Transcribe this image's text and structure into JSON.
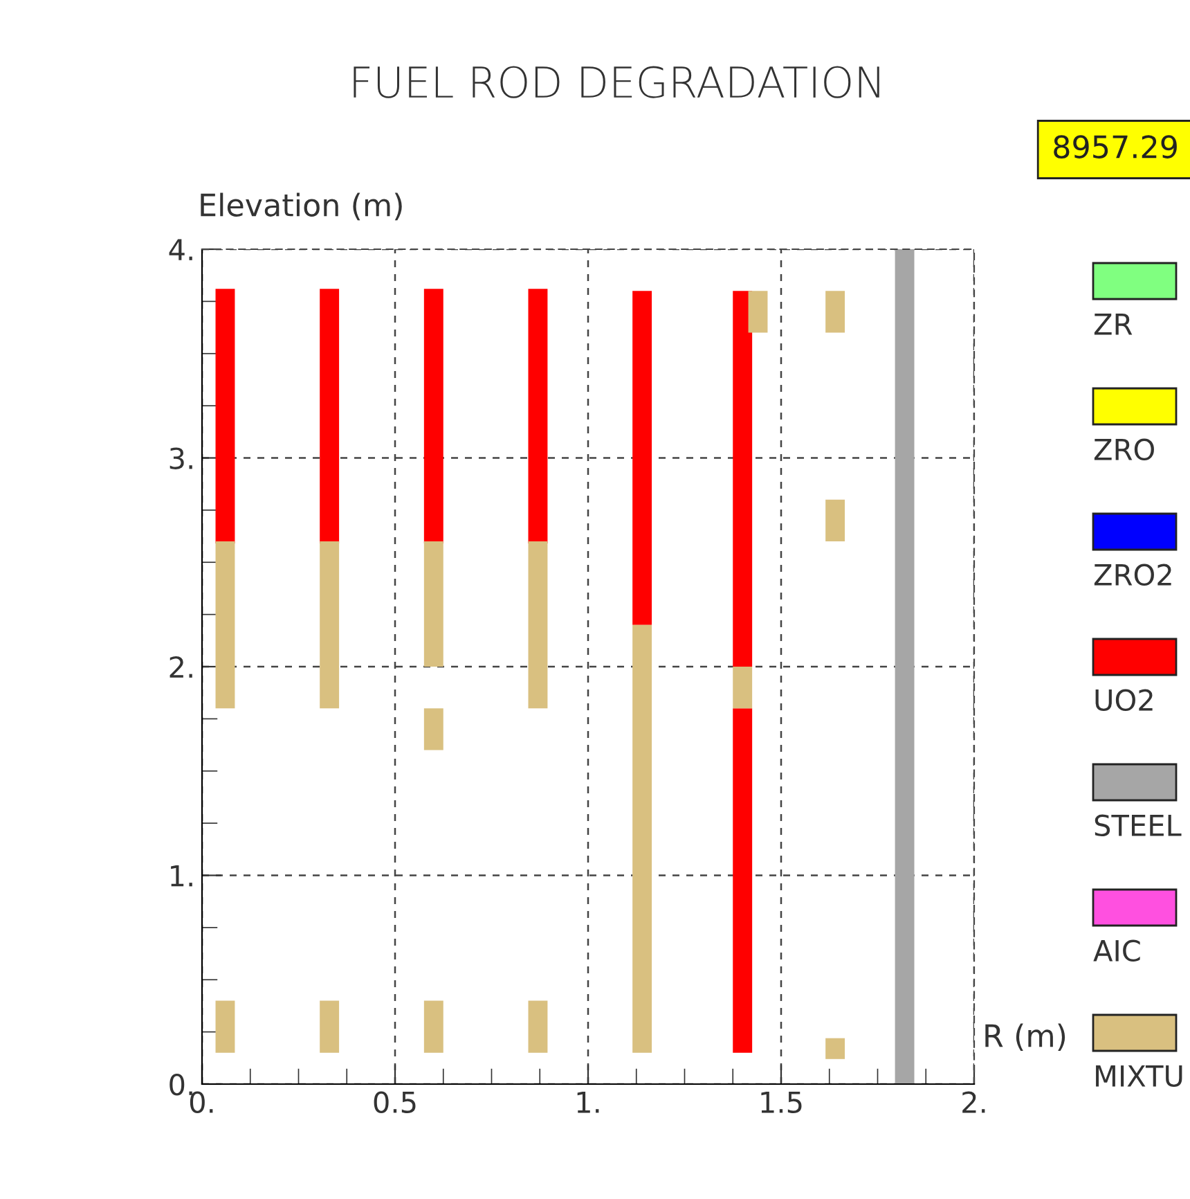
{
  "chart_data": {
    "type": "bar",
    "title": "FUEL ROD DEGRADATION",
    "xlabel": "R (m)",
    "ylabel": "Elevation (m)",
    "annotations": [
      "8957.29"
    ],
    "xlim": [
      0,
      2
    ],
    "xticks": [
      {
        "value": 0,
        "label": "0."
      },
      0.5,
      {
        "value": 1,
        "label": "1."
      },
      1.5,
      {
        "value": 2,
        "label": "2."
      }
    ],
    "ylim": [
      0,
      4
    ],
    "yticks": [
      {
        "value": 0,
        "label": "0."
      },
      {
        "value": 1,
        "label": "1."
      },
      {
        "value": 2,
        "label": "2."
      },
      {
        "value": 3,
        "label": "3."
      },
      {
        "value": 4,
        "label": "4."
      }
    ],
    "grid": true,
    "legend": "right",
    "series": [
      {
        "name": "ZR",
        "color": "#80ff80"
      },
      {
        "name": "ZRO",
        "color": "#ffff00"
      },
      {
        "name": "ZRO2",
        "color": "#0000ff"
      },
      {
        "name": "UO2",
        "color": "#ff0000",
        "x": [
          0.06,
          0.33,
          0.6,
          0.87,
          1.14,
          1.4
        ],
        "values": [
          1.22,
          1.22,
          1.22,
          1.22,
          1.6,
          1.8
        ],
        "base": [
          2.59,
          2.59,
          2.59,
          2.59,
          2.2,
          2.0
        ]
      },
      {
        "color": "#ff0000",
        "x": [
          1.4
        ],
        "values": [
          1.65
        ],
        "base": [
          0.15
        ]
      },
      {
        "name": "STEEL",
        "color": "#a6a6a6",
        "x": [
          1.82
        ],
        "values": [
          4.0
        ],
        "base": [
          0
        ]
      },
      {
        "name": "AIC",
        "color": "#ff50e0"
      },
      {
        "name": "MIXTU",
        "color": "#d9c080",
        "x": [
          0.06,
          0.33,
          0.6,
          0.87,
          1.14,
          1.4,
          1.44,
          1.64
        ],
        "values": [
          0.8,
          0.8,
          0.6,
          0.8,
          2.05,
          0.2,
          0.2,
          0.2
        ],
        "base": [
          1.8,
          1.8,
          2.0,
          1.8,
          0.15,
          1.8,
          3.6,
          3.6
        ]
      },
      {
        "color": "#d9c080",
        "x": [
          0.06,
          0.33,
          0.6,
          0.87,
          1.64
        ],
        "values": [
          0.25,
          0.25,
          0.25,
          0.25,
          0.1
        ],
        "base": [
          0.15,
          0.15,
          0.15,
          0.15,
          0.12
        ]
      },
      {
        "color": "#d9c080",
        "x": [
          0.6,
          1.64
        ],
        "values": [
          0.2,
          0.2
        ],
        "base": [
          1.6,
          2.6
        ]
      }
    ]
  }
}
